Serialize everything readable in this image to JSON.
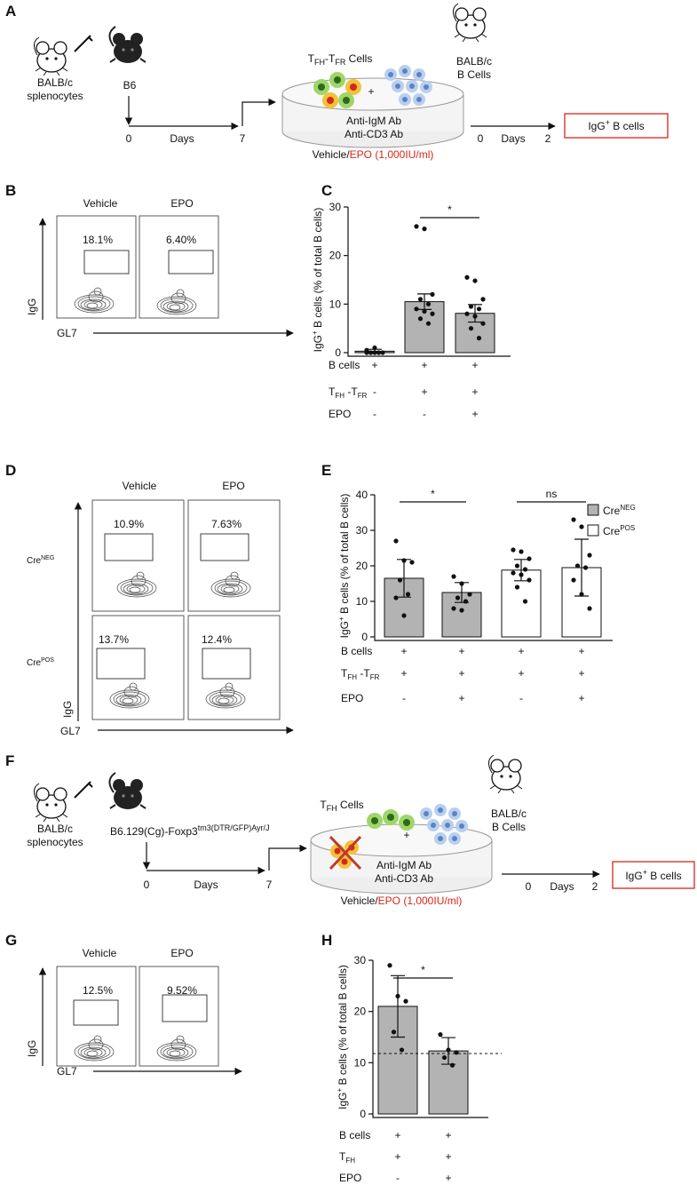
{
  "panels": {
    "A": {
      "label": "A",
      "donor": [
        "BALB/c",
        "splenocytes"
      ],
      "recipient": "B6",
      "days": [
        "0",
        "Days",
        "7"
      ],
      "cells": [
        "T",
        "FH",
        "-T",
        "FR",
        " Cells"
      ],
      "plus": "+",
      "antibodies": [
        "Anti-IgM Ab",
        "Anti-CD3 Ab"
      ],
      "treatment": [
        "Vehicle/",
        "EPO (1,000IU/ml)"
      ],
      "target": [
        "BALB/c",
        "B Cells"
      ],
      "days2": [
        "0",
        "Days",
        "2"
      ],
      "readout": [
        "IgG",
        "+",
        " B cells"
      ]
    },
    "B": {
      "label": "B",
      "columns": [
        "Vehicle",
        "EPO"
      ],
      "percentages": [
        "18.1%",
        "6.40%"
      ],
      "y_axis": "IgG",
      "x_axis": "GL7"
    },
    "D": {
      "label": "D",
      "columns": [
        "Vehicle",
        "EPO"
      ],
      "rows": [
        [
          "Cre",
          "NEG"
        ],
        [
          "Cre",
          "POS"
        ]
      ],
      "percentages": [
        "10.9%",
        "7.63%",
        "13.7%",
        "12.4%"
      ],
      "y_axis": "IgG",
      "x_axis": "GL7"
    },
    "F": {
      "label": "F",
      "donor": [
        "BALB/c",
        "splenocytes"
      ],
      "recipient": [
        "B6.129(Cg)-Foxp3",
        "tm3(DTR/GFP)Ayr/J"
      ],
      "days": [
        "0",
        "Days",
        "7"
      ],
      "cells": [
        "T",
        "FH",
        " Cells"
      ],
      "plus": "+",
      "antibodies": [
        "Anti-IgM Ab",
        "Anti-CD3 Ab"
      ],
      "treatment": [
        "Vehicle/",
        "EPO (1,000IU/ml)"
      ],
      "target": [
        "BALB/c",
        "B Cells"
      ],
      "days2": [
        "0",
        "Days",
        "2"
      ],
      "readout": [
        "IgG",
        "+",
        " B cells"
      ]
    },
    "G": {
      "label": "G",
      "columns": [
        "Vehicle",
        "EPO"
      ],
      "percentages": [
        "12.5%",
        "9.52%"
      ],
      "y_axis": "IgG",
      "x_axis": "GL7"
    }
  },
  "chart_data": [
    {
      "type": "bar",
      "panel_label": "C",
      "ylabel": [
        "IgG",
        "+",
        " B cells (% of total B cells)"
      ],
      "ylim": [
        0,
        30
      ],
      "yticks": [
        0,
        10,
        20,
        30
      ],
      "series": [
        {
          "color": "#b3b3b3",
          "values": [
            0.3,
            10.5,
            8.1
          ],
          "errors": [
            0.4,
            1.6,
            1.8
          ],
          "points": [
            [
              0,
              0,
              0,
              0,
              0,
              0.5,
              1
            ],
            [
              26,
              25.5,
              12,
              11,
              10,
              9,
              8.5,
              8,
              7,
              6
            ],
            [
              15.5,
              14.8,
              11,
              9.5,
              9,
              8,
              7.5,
              6,
              5,
              3
            ]
          ]
        }
      ],
      "conditions": [
        {
          "label": [
            "B cells"
          ],
          "values": [
            "+",
            "+",
            "+"
          ]
        },
        {
          "label": [
            "T",
            "FH",
            " -T",
            "FR"
          ],
          "values": [
            "-",
            "+",
            "+"
          ]
        },
        {
          "label": [
            "EPO"
          ],
          "values": [
            "-",
            "-",
            "+"
          ]
        }
      ],
      "significance": [
        {
          "from": 1,
          "to": 2,
          "label": "*"
        }
      ]
    },
    {
      "type": "bar",
      "panel_label": "E",
      "ylabel": [
        "IgG",
        "+",
        " B cells (% of total B cells)"
      ],
      "ylim": [
        0,
        40
      ],
      "yticks": [
        0,
        10,
        20,
        30,
        40
      ],
      "series": [
        {
          "name": [
            "Cre",
            "NEG"
          ],
          "color": "#b3b3b3",
          "values": [
            16.5,
            12.5
          ],
          "errors": [
            5.3,
            2.8
          ],
          "points": [
            [
              27,
              21.5,
              21,
              16,
              12,
              11,
              6
            ],
            [
              17,
              15,
              12,
              11,
              10,
              8,
              7.5
            ]
          ]
        },
        {
          "name": [
            "Cre",
            "POS"
          ],
          "color": "#ffffff",
          "values": [
            18.8,
            19.5
          ],
          "errors": [
            3,
            8
          ],
          "points": [
            [
              24.5,
              24,
              22,
              20,
              19,
              18,
              17.5,
              16,
              14,
              10
            ],
            [
              33,
              31,
              23,
              20,
              19.5,
              16,
              12,
              8
            ]
          ]
        }
      ],
      "conditions": [
        {
          "label": [
            "B cells"
          ],
          "values": [
            "+",
            "+",
            "+",
            "+"
          ]
        },
        {
          "label": [
            "T",
            "FH",
            " -T",
            "FR"
          ],
          "values": [
            "+",
            "+",
            "+",
            "+"
          ]
        },
        {
          "label": [
            "EPO"
          ],
          "values": [
            "-",
            "+",
            "-",
            "+"
          ]
        }
      ],
      "significance": [
        {
          "from": 0,
          "to": 1,
          "label": "*"
        },
        {
          "from": 2,
          "to": 3,
          "label": "ns"
        }
      ]
    },
    {
      "type": "bar",
      "panel_label": "H",
      "ylabel": [
        "IgG",
        "+",
        " B cells (% of total B cells)"
      ],
      "ylim": [
        0,
        30
      ],
      "yticks": [
        0,
        10,
        20,
        30
      ],
      "reference_line": 11.8,
      "series": [
        {
          "color": "#b3b3b3",
          "values": [
            21,
            12.3
          ],
          "errors": [
            6,
            2.6
          ],
          "points": [
            [
              29,
              23,
              22,
              16,
              12.5
            ],
            [
              15.5,
              12.5,
              12,
              11,
              9.5
            ]
          ]
        }
      ],
      "conditions": [
        {
          "label": [
            "B cells"
          ],
          "values": [
            "+",
            "+"
          ]
        },
        {
          "label": [
            "T",
            "FH"
          ],
          "values": [
            "+",
            "+"
          ]
        },
        {
          "label": [
            "EPO"
          ],
          "values": [
            "-",
            "+"
          ]
        }
      ],
      "significance": [
        {
          "from": 0,
          "to": 1,
          "label": "*"
        }
      ]
    }
  ]
}
